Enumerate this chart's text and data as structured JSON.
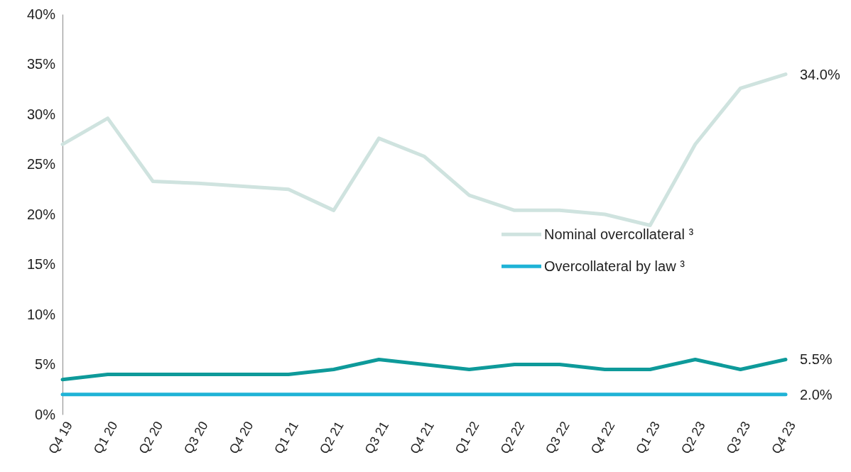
{
  "chart_data": {
    "type": "line",
    "categories": [
      "Q4 19",
      "Q1 20",
      "Q2 20",
      "Q3 20",
      "Q4 20",
      "Q1 21",
      "Q2 21",
      "Q3 21",
      "Q4 21",
      "Q1 22",
      "Q2 22",
      "Q3 22",
      "Q4 22",
      "Q1 23",
      "Q2 23",
      "Q3 23",
      "Q4 23"
    ],
    "series": [
      {
        "name": "Nominal overcollateral ³",
        "color": "#cfe3df",
        "values": [
          27.0,
          29.6,
          23.3,
          23.1,
          22.8,
          22.5,
          20.4,
          27.6,
          25.8,
          21.9,
          20.4,
          20.4,
          20.0,
          18.9,
          27.0,
          32.6,
          34.0
        ],
        "value_labels": [
          null,
          null,
          null,
          null,
          null,
          null,
          null,
          null,
          null,
          null,
          null,
          null,
          null,
          null,
          null,
          null,
          "34.0%"
        ]
      },
      {
        "name": "Overcollateral by law ³",
        "color": "#1fb3d6",
        "values": [
          2.0,
          2.0,
          2.0,
          2.0,
          2.0,
          2.0,
          2.0,
          2.0,
          2.0,
          2.0,
          2.0,
          2.0,
          2.0,
          2.0,
          2.0,
          2.0,
          2.0
        ],
        "value_labels": [
          null,
          null,
          null,
          null,
          null,
          null,
          null,
          null,
          null,
          null,
          null,
          null,
          null,
          null,
          null,
          null,
          "2.0%"
        ]
      },
      {
        "color": "#0e9a9a",
        "values": [
          3.5,
          4.0,
          4.0,
          4.0,
          4.0,
          4.0,
          4.5,
          5.5,
          5.0,
          4.5,
          5.0,
          5.0,
          4.5,
          4.5,
          5.5,
          4.5,
          5.5
        ],
        "value_labels": [
          null,
          null,
          null,
          null,
          null,
          null,
          null,
          null,
          null,
          null,
          null,
          null,
          null,
          null,
          null,
          null,
          "5.5%"
        ]
      }
    ],
    "ylim": [
      0,
      40
    ],
    "yticks": [
      {
        "value": 0,
        "label": "0%"
      },
      {
        "value": 5,
        "label": "5%"
      },
      {
        "value": 10,
        "label": "10%"
      },
      {
        "value": 15,
        "label": "15%"
      },
      {
        "value": 20,
        "label": "20%"
      },
      {
        "value": 25,
        "label": "25%"
      },
      {
        "value": 30,
        "label": "30%"
      },
      {
        "value": 35,
        "label": "35%"
      },
      {
        "value": 40,
        "label": "40%"
      }
    ],
    "grid": false,
    "legend": "right",
    "marker": "none",
    "line_style": "solid"
  }
}
